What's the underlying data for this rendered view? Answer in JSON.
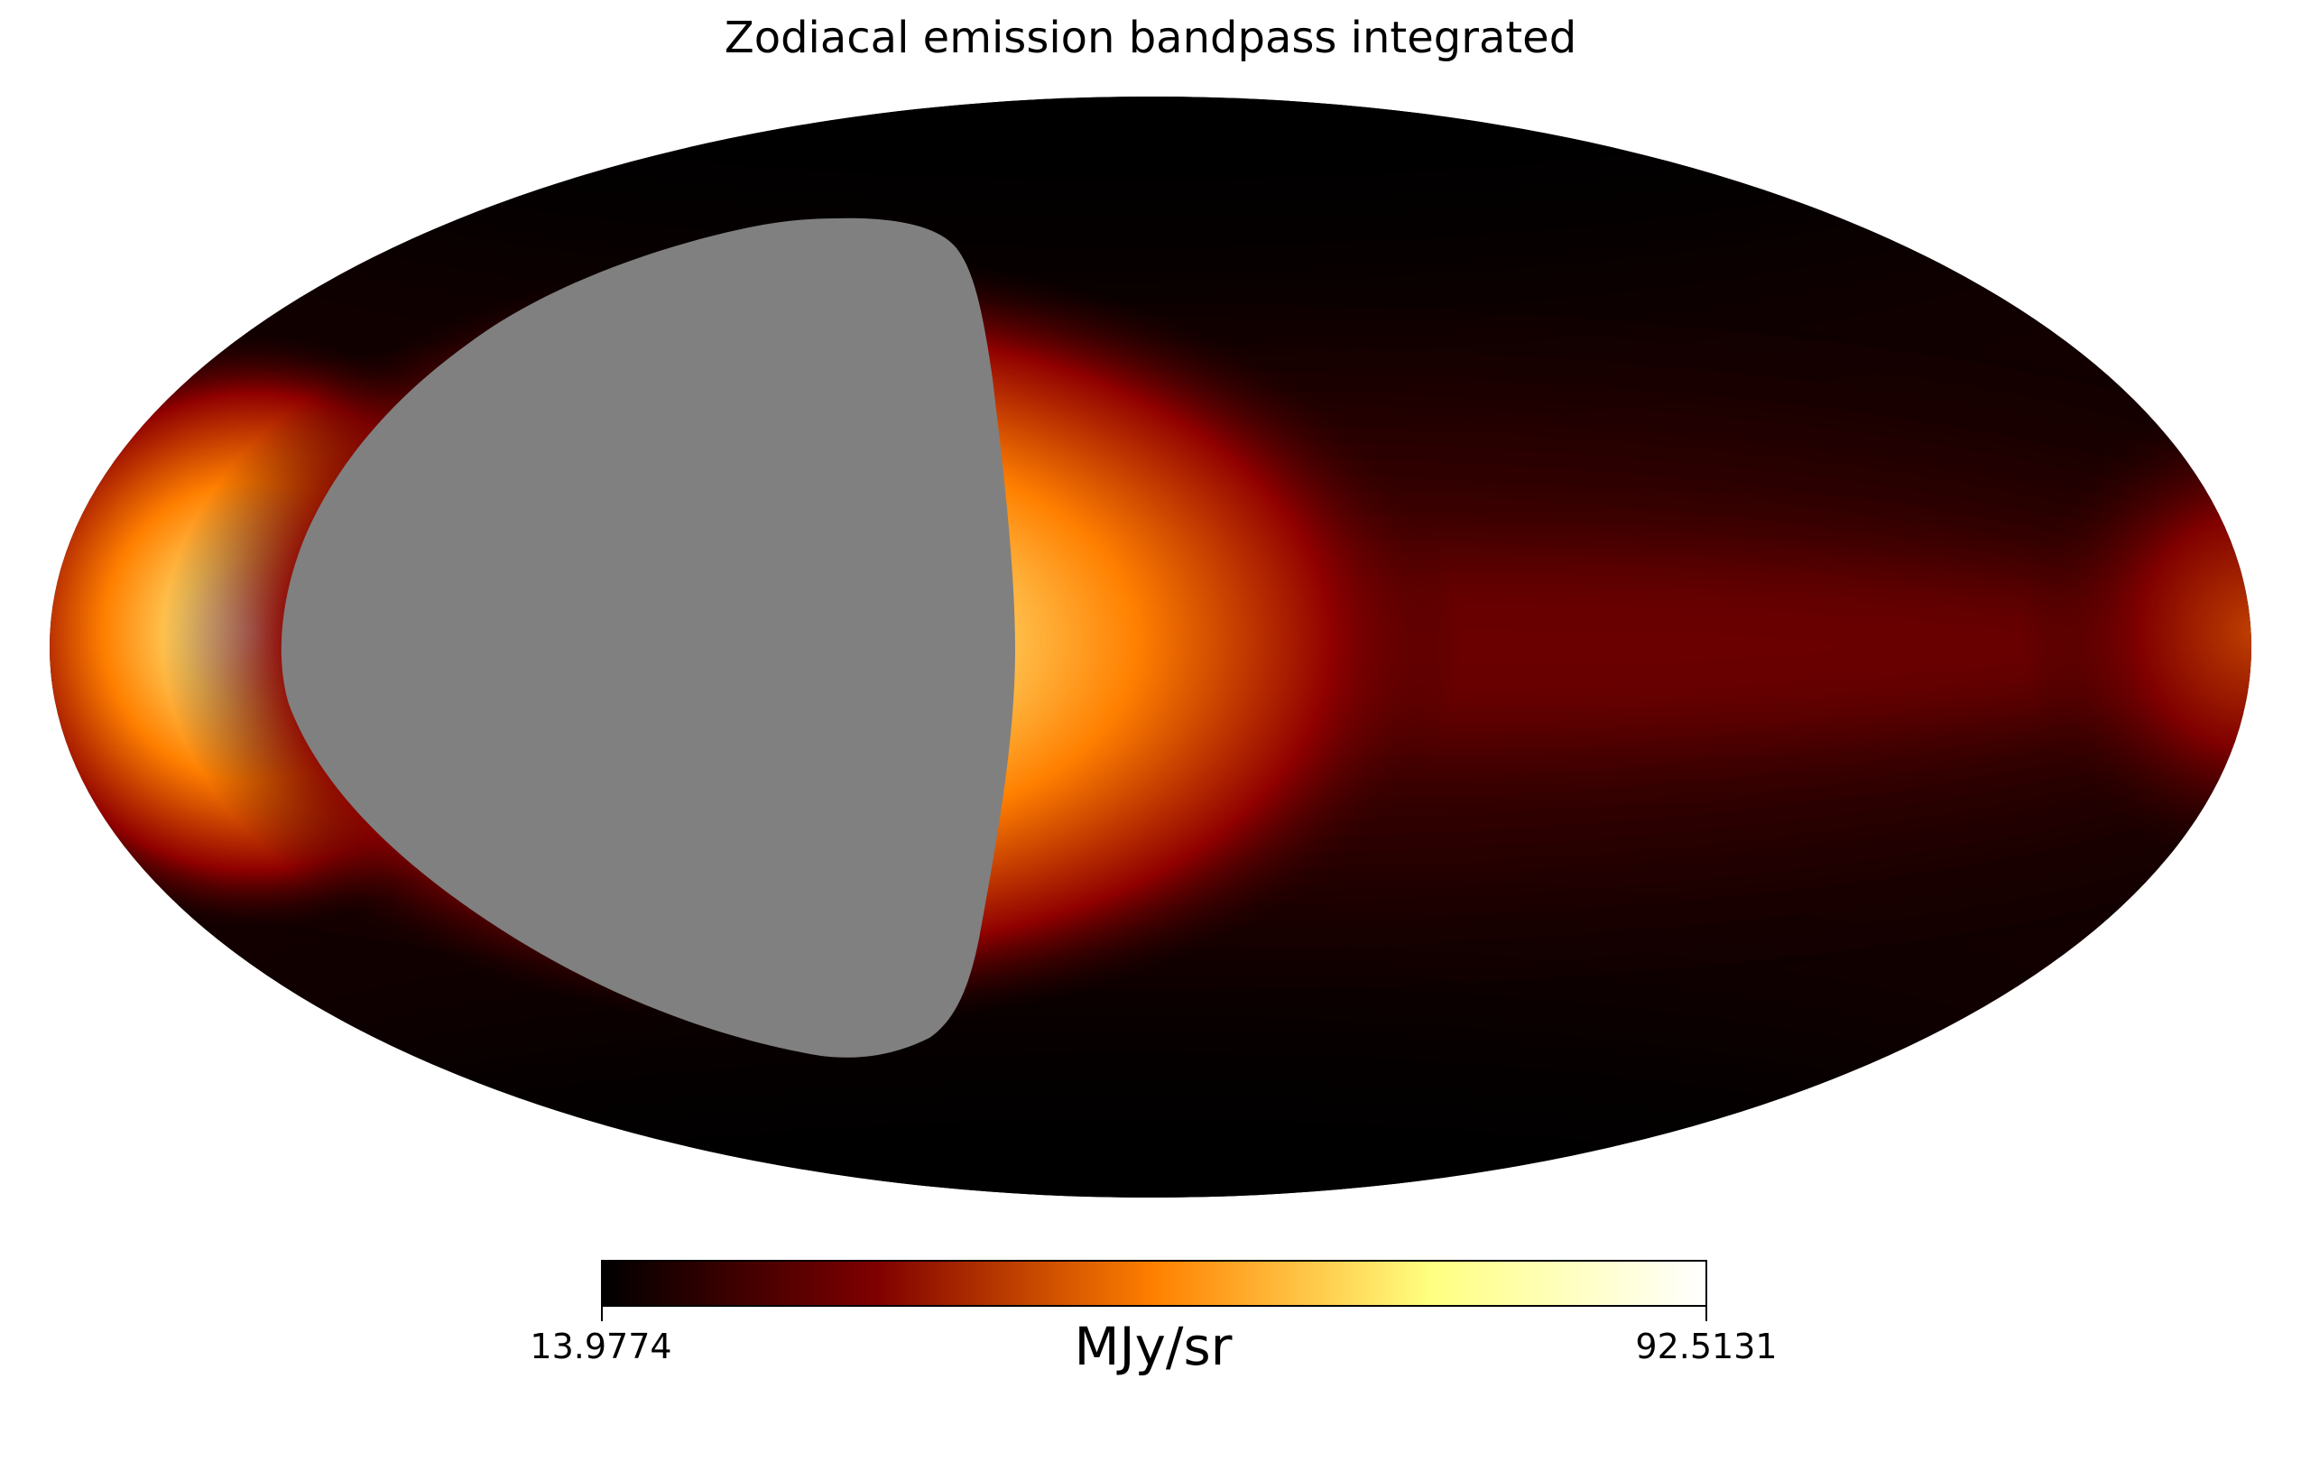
{
  "chart_data": {
    "type": "heatmap",
    "projection": "mollweide",
    "title": "Zodiacal emission bandpass integrated",
    "colormap": "afmhot",
    "colorbar": {
      "min": 13.9774,
      "max": 92.5131,
      "min_label": "13.9774",
      "max_label": "92.5131",
      "unit": "MJy/sr",
      "orientation": "horizontal"
    },
    "masked_color": "#808080",
    "colors": {
      "bad_pixel": "#808080",
      "colormap_stops": [
        "#000000",
        "#800000",
        "#ff8000",
        "#ffff80",
        "#ffffff"
      ]
    }
  }
}
